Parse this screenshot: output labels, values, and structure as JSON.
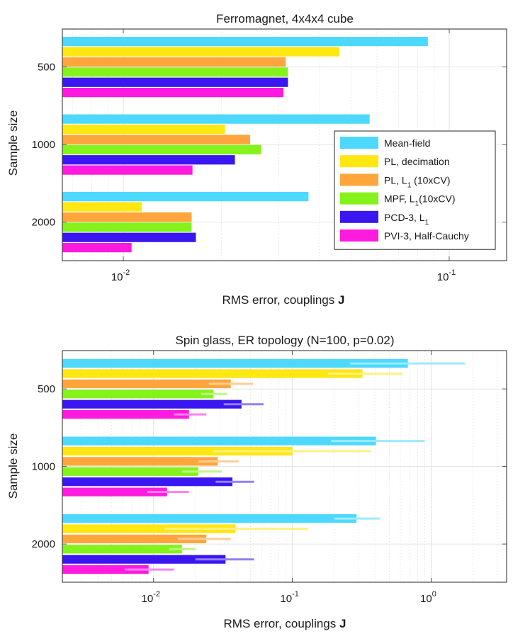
{
  "colors": {
    "Mean-field": "#4dd9ff",
    "PL, decimation": "#ffe712",
    "PL, L1 (10xCV)": "#ffa53c",
    "MPF, L1(10xCV)": "#85f21b",
    "PCD-3, L1": "#3a17f0",
    "PVI-3, Half-Cauchy": "#ff1adf"
  },
  "chart_data": [
    {
      "type": "bar",
      "orientation": "horizontal",
      "title": "Ferromagnet, 4x4x4 cube",
      "xlabel": "RMS error, couplings",
      "xlabel_bold": "J",
      "ylabel": "Sample size",
      "xscale": "log",
      "xlim": [
        0.0065,
        0.15
      ],
      "xticks": [
        {
          "value": 0.01,
          "base": "10",
          "exp": "-2"
        },
        {
          "value": 0.1,
          "base": "10",
          "exp": "-1"
        }
      ],
      "categories": [
        "500",
        "1000",
        "2000"
      ],
      "series": [
        {
          "name": "Mean-field",
          "values": [
            0.086,
            0.057,
            0.037
          ]
        },
        {
          "name": "PL, decimation",
          "values": [
            0.046,
            0.0205,
            0.0114
          ]
        },
        {
          "name": "PL, L1 (10xCV)",
          "values": [
            0.0315,
            0.0245,
            0.0162
          ]
        },
        {
          "name": "MPF, L1(10xCV)",
          "values": [
            0.032,
            0.0265,
            0.0162
          ]
        },
        {
          "name": "PCD-3, L1",
          "values": [
            0.032,
            0.022,
            0.0167
          ]
        },
        {
          "name": "PVI-3, Half-Cauchy",
          "values": [
            0.031,
            0.0163,
            0.0106
          ]
        }
      ],
      "legend": {
        "position": "bottom-right",
        "entries": [
          {
            "name": "Mean-field",
            "text": "Mean-field"
          },
          {
            "name": "PL, decimation",
            "text": "PL, decimation"
          },
          {
            "name": "PL, L1 (10xCV)",
            "text": "PL, L",
            "sub": "1",
            "suffix": " (10xCV)"
          },
          {
            "name": "MPF, L1(10xCV)",
            "text": "MPF, L",
            "sub": "1",
            "suffix": "(10xCV)"
          },
          {
            "name": "PCD-3, L1",
            "text": "PCD-3, L",
            "sub": "1",
            "suffix": ""
          },
          {
            "name": "PVI-3, Half-Cauchy",
            "text": "PVI-3, Half-Cauchy"
          }
        ]
      }
    },
    {
      "type": "bar",
      "orientation": "horizontal",
      "title": "Spin glass, ER topology (N=100, p=0.02)",
      "xlabel": "RMS error, couplings",
      "xlabel_bold": "J",
      "ylabel": "Sample size",
      "xscale": "log",
      "xlim": [
        0.0022,
        3.5
      ],
      "xticks": [
        {
          "value": 0.01,
          "base": "10",
          "exp": "-2"
        },
        {
          "value": 0.1,
          "base": "10",
          "exp": "-1"
        },
        {
          "value": 1,
          "base": "10",
          "exp": "0"
        }
      ],
      "categories": [
        "500",
        "1000",
        "2000"
      ],
      "series": [
        {
          "name": "Mean-field",
          "values": [
            0.68,
            0.4,
            0.29
          ],
          "error_low": [
            0.26,
            0.19,
            0.2
          ],
          "error_high": [
            1.75,
            0.9,
            0.43
          ]
        },
        {
          "name": "PL, decimation",
          "values": [
            0.32,
            0.1,
            0.039
          ],
          "error_low": [
            0.18,
            0.027,
            0.012
          ],
          "error_high": [
            0.62,
            0.37,
            0.13
          ]
        },
        {
          "name": "PL, L1 (10xCV)",
          "values": [
            0.036,
            0.029,
            0.024
          ],
          "error_low": [
            0.025,
            0.021,
            0.015
          ],
          "error_high": [
            0.052,
            0.041,
            0.036
          ]
        },
        {
          "name": "MPF, L1(10xCV)",
          "values": [
            0.027,
            0.021,
            0.016
          ],
          "error_low": [
            0.022,
            0.016,
            0.013
          ],
          "error_high": [
            0.034,
            0.031,
            0.02
          ]
        },
        {
          "name": "PCD-3, L1",
          "values": [
            0.043,
            0.037,
            0.033
          ],
          "error_low": [
            0.032,
            0.028,
            0.02
          ],
          "error_high": [
            0.062,
            0.053,
            0.053
          ]
        },
        {
          "name": "PVI-3, Half-Cauchy",
          "values": [
            0.018,
            0.0125,
            0.0092
          ],
          "error_low": [
            0.014,
            0.009,
            0.0062
          ],
          "error_high": [
            0.024,
            0.018,
            0.014
          ]
        }
      ]
    }
  ]
}
